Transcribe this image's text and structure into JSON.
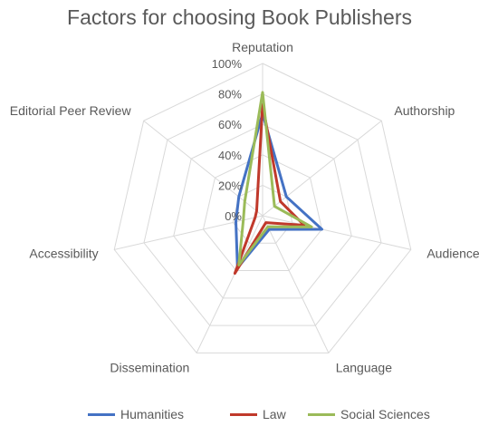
{
  "chart_data": {
    "type": "radar",
    "title": "Factors for choosing Book Publishers",
    "axes": [
      "Reputation",
      "Authorship",
      "Audience",
      "Language",
      "Dissemination",
      "Accessibility",
      "Editorial Peer Review"
    ],
    "tick_labels": [
      "0%",
      "20%",
      "40%",
      "60%",
      "80%",
      "100%"
    ],
    "range": [
      0,
      100
    ],
    "series": [
      {
        "name": "Humanities",
        "color": "#4472c4",
        "values": [
          67,
          20,
          40,
          10,
          38,
          18,
          20
        ]
      },
      {
        "name": "Law",
        "color": "#c0392b",
        "values": [
          73,
          15,
          28,
          5,
          42,
          5,
          5
        ]
      },
      {
        "name": "Social Sciences",
        "color": "#9bbb59",
        "values": [
          81,
          10,
          33,
          8,
          36,
          13,
          15
        ]
      }
    ],
    "legend_position": "bottom",
    "grid": true
  }
}
